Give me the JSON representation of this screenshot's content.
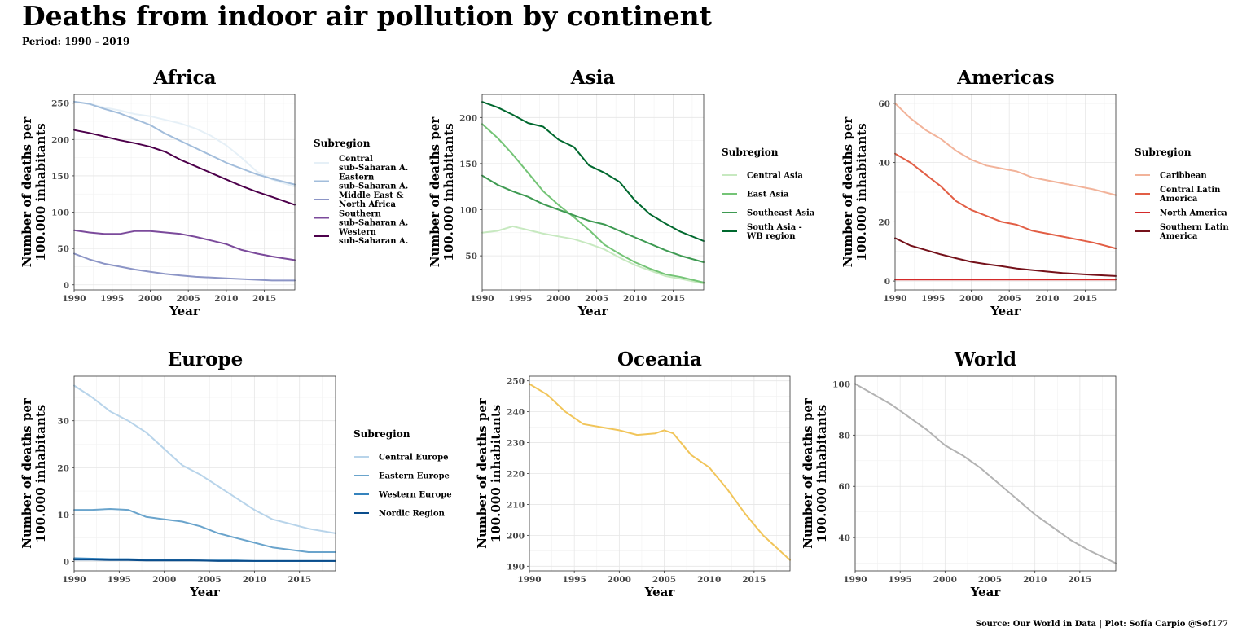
{
  "title": "Deaths from indoor air pollution by continent",
  "subtitle": "Period: 1990 - 2019",
  "caption": "Source: Our World in Data | Plot: Sofía Carpio @Sof177",
  "chart_data": [
    {
      "type": "line",
      "title": "Africa",
      "xlabel": "Year",
      "ylabel": "Number of deaths per 100.000 inhabitants",
      "xlim": [
        1990,
        2019
      ],
      "ylim": [
        -7,
        262
      ],
      "xticks": [
        1990,
        1995,
        2000,
        2005,
        2010,
        2015
      ],
      "yticks": [
        0,
        50,
        100,
        150,
        200,
        250
      ],
      "legend_title": "Subregion",
      "legend_position": "right",
      "x": [
        1990,
        1992,
        1994,
        1996,
        1998,
        2000,
        2002,
        2004,
        2006,
        2008,
        2010,
        2012,
        2014,
        2016,
        2019
      ],
      "series": [
        {
          "name": "Central sub-Saharan A.",
          "color": "#e6f0f7",
          "values": [
            252,
            249,
            244,
            240,
            235,
            232,
            227,
            222,
            215,
            205,
            192,
            175,
            156,
            145,
            135
          ]
        },
        {
          "name": "Eastern sub-Saharan A.",
          "color": "#a2bddb",
          "values": [
            252,
            249,
            242,
            236,
            228,
            220,
            208,
            198,
            188,
            178,
            168,
            160,
            152,
            146,
            138
          ]
        },
        {
          "name": "Middle East & North Africa",
          "color": "#8c95c6",
          "values": [
            43,
            35,
            29,
            25,
            21,
            18,
            15,
            13,
            11,
            10,
            9,
            8,
            7,
            6,
            6
          ]
        },
        {
          "name": "Southern sub-Saharan A.",
          "color": "#7b4a9b",
          "values": [
            75,
            72,
            70,
            70,
            74,
            74,
            72,
            70,
            66,
            61,
            56,
            48,
            43,
            39,
            34
          ]
        },
        {
          "name": "Western sub-Saharan A.",
          "color": "#4d004b",
          "values": [
            213,
            209,
            204,
            199,
            195,
            190,
            183,
            172,
            163,
            154,
            145,
            136,
            128,
            121,
            110
          ]
        }
      ]
    },
    {
      "type": "line",
      "title": "Asia",
      "xlabel": "Year",
      "ylabel": "Number of deaths per 100.000 inhabitants",
      "xlim": [
        1990,
        2019
      ],
      "ylim": [
        13,
        225
      ],
      "xticks": [
        1990,
        1995,
        2000,
        2005,
        2010,
        2015
      ],
      "yticks": [
        50,
        100,
        150,
        200
      ],
      "legend_title": "Subregion",
      "legend_position": "right",
      "x": [
        1990,
        1992,
        1994,
        1996,
        1998,
        2000,
        2002,
        2004,
        2006,
        2008,
        2010,
        2012,
        2014,
        2016,
        2019
      ],
      "series": [
        {
          "name": "Central Asia",
          "color": "#c7e9c0",
          "values": [
            75,
            77,
            82,
            78,
            74,
            71,
            68,
            63,
            57,
            48,
            40,
            34,
            28,
            25,
            20
          ]
        },
        {
          "name": "East Asia",
          "color": "#74c476",
          "values": [
            193,
            178,
            160,
            140,
            120,
            105,
            92,
            78,
            62,
            52,
            43,
            36,
            30,
            27,
            21
          ]
        },
        {
          "name": "Southeast Asia",
          "color": "#3e9a52",
          "values": [
            137,
            127,
            120,
            114,
            106,
            100,
            94,
            88,
            84,
            77,
            70,
            63,
            56,
            50,
            43
          ]
        },
        {
          "name": "South Asia - WB region",
          "color": "#00682e",
          "values": [
            217,
            211,
            203,
            194,
            190,
            176,
            168,
            148,
            140,
            130,
            110,
            95,
            85,
            76,
            66
          ]
        }
      ]
    },
    {
      "type": "line",
      "title": "Americas",
      "xlabel": "Year",
      "ylabel": "Number of deaths per 100.000 inhabitants",
      "xlim": [
        1990,
        2019
      ],
      "ylim": [
        -3,
        63
      ],
      "xticks": [
        1990,
        1995,
        2000,
        2005,
        2010,
        2015
      ],
      "yticks": [
        0,
        20,
        40,
        60
      ],
      "legend_title": "Subregion",
      "legend_position": "right",
      "x": [
        1990,
        1992,
        1994,
        1996,
        1998,
        2000,
        2002,
        2004,
        2006,
        2008,
        2010,
        2012,
        2014,
        2016,
        2019
      ],
      "series": [
        {
          "name": "Caribbean",
          "color": "#f2b39a",
          "values": [
            60,
            55,
            51,
            48,
            44,
            41,
            39,
            38,
            37,
            35,
            34,
            33,
            32,
            31,
            29
          ]
        },
        {
          "name": "Central Latin America",
          "color": "#e25e45",
          "values": [
            43,
            40,
            36,
            32,
            27,
            24,
            22,
            20,
            19,
            17,
            16,
            15,
            14,
            13,
            11
          ]
        },
        {
          "name": "North America",
          "color": "#d42a2a",
          "values": [
            0.5,
            0.5,
            0.5,
            0.5,
            0.5,
            0.5,
            0.5,
            0.5,
            0.5,
            0.5,
            0.5,
            0.5,
            0.5,
            0.5,
            0.5
          ]
        },
        {
          "name": "Southern Latin America",
          "color": "#75111a",
          "values": [
            14.5,
            12,
            10.5,
            9,
            7.7,
            6.5,
            5.7,
            5,
            4.2,
            3.7,
            3.2,
            2.7,
            2.4,
            2.1,
            1.7
          ]
        }
      ]
    },
    {
      "type": "line",
      "title": "Europe",
      "xlabel": "Year",
      "ylabel": "Number of deaths per 100.000 inhabitants",
      "xlim": [
        1990,
        2019
      ],
      "ylim": [
        -2,
        39.5
      ],
      "xticks": [
        1990,
        1995,
        2000,
        2005,
        2010,
        2015
      ],
      "yticks": [
        0,
        10,
        20,
        30
      ],
      "legend_title": "Subregion",
      "legend_position": "right",
      "x": [
        1990,
        1992,
        1994,
        1996,
        1998,
        2000,
        2002,
        2004,
        2006,
        2008,
        2010,
        2012,
        2014,
        2016,
        2019
      ],
      "series": [
        {
          "name": "Central Europe",
          "color": "#b8d4ea",
          "values": [
            37.5,
            35,
            32,
            30,
            27.5,
            24,
            20.5,
            18.5,
            16,
            13.5,
            11,
            9,
            8,
            7,
            6
          ]
        },
        {
          "name": "Eastern Europe",
          "color": "#6aa4cc",
          "values": [
            11,
            11,
            11.2,
            11,
            9.5,
            9,
            8.5,
            7.5,
            6,
            5,
            4,
            3,
            2.5,
            2,
            2
          ]
        },
        {
          "name": "Western Europe",
          "color": "#3583bd",
          "values": [
            0.7,
            0.6,
            0.5,
            0.5,
            0.4,
            0.3,
            0.3,
            0.2,
            0.2,
            0.2,
            0.1,
            0.1,
            0.1,
            0.1,
            0.1
          ]
        },
        {
          "name": "Nordic Region",
          "color": "#0a4d8c",
          "values": [
            0.4,
            0.4,
            0.3,
            0.3,
            0.2,
            0.2,
            0.2,
            0.2,
            0.1,
            0.1,
            0.1,
            0.1,
            0.1,
            0.1,
            0.1
          ]
        }
      ]
    },
    {
      "type": "line",
      "title": "Oceania",
      "xlabel": "Year",
      "ylabel": "Number of deaths per 100.000 inhabitants",
      "xlim": [
        1990,
        2019
      ],
      "ylim": [
        188.5,
        251.5
      ],
      "xticks": [
        1990,
        1995,
        2000,
        2005,
        2010,
        2015
      ],
      "yticks": [
        190,
        200,
        210,
        220,
        230,
        240,
        250
      ],
      "legend_title": "",
      "legend_position": "none",
      "x": [
        1990,
        1992,
        1994,
        1996,
        1998,
        2000,
        2002,
        2004,
        2005,
        2006,
        2008,
        2010,
        2012,
        2014,
        2016,
        2019
      ],
      "series": [
        {
          "name": "",
          "color": "#f1c55a",
          "values": [
            249,
            245.5,
            240,
            236,
            235,
            234,
            232.5,
            233,
            234,
            233,
            226,
            222,
            215,
            207,
            200,
            192
          ]
        }
      ]
    },
    {
      "type": "line",
      "title": "World",
      "xlabel": "Year",
      "ylabel": "Number of deaths per 100.000 inhabitants",
      "xlim": [
        1990,
        2019
      ],
      "ylim": [
        27,
        103
      ],
      "xticks": [
        1990,
        1995,
        2000,
        2005,
        2010,
        2015
      ],
      "yticks": [
        40,
        60,
        80,
        100
      ],
      "legend_title": "",
      "legend_position": "none",
      "x": [
        1990,
        1992,
        1994,
        1996,
        1998,
        2000,
        2002,
        2004,
        2006,
        2008,
        2010,
        2012,
        2014,
        2016,
        2019
      ],
      "series": [
        {
          "name": "",
          "color": "#b3b3b3",
          "values": [
            100,
            96,
            92,
            87,
            82,
            76,
            72,
            67,
            61,
            55,
            49,
            44,
            39,
            35,
            30
          ]
        }
      ]
    }
  ]
}
